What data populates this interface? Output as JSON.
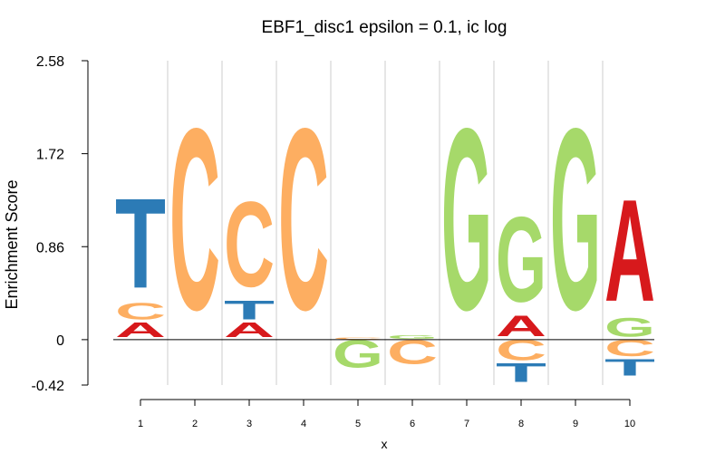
{
  "chart_data": {
    "type": "sequence-logo",
    "title": "EBF1_disc1 epsilon = 0.1, ic log",
    "xlabel": "x",
    "ylabel": "Enrichment Score",
    "ylim": [
      -0.42,
      2.58
    ],
    "yticks": [
      "2.58",
      "1.72",
      "0.86",
      "0",
      "-0.42"
    ],
    "ytick_values": [
      2.58,
      1.72,
      0.86,
      0,
      -0.42
    ],
    "positions": [
      "1",
      "2",
      "3",
      "4",
      "5",
      "6",
      "7",
      "8",
      "9",
      "10"
    ],
    "colors": {
      "A": "#d7191c",
      "C": "#fdae61",
      "G": "#a6d96a",
      "T": "#2c7bb6"
    },
    "columns": [
      {
        "position": 1,
        "positive": [
          {
            "base": "A",
            "score": 0.16
          },
          {
            "base": "C",
            "score": 0.18
          },
          {
            "base": "T",
            "score": 0.97
          }
        ],
        "negative": []
      },
      {
        "position": 2,
        "positive": [
          {
            "base": "C",
            "score": 1.96
          }
        ],
        "negative": []
      },
      {
        "position": 3,
        "positive": [
          {
            "base": "A",
            "score": 0.16
          },
          {
            "base": "T",
            "score": 0.2
          },
          {
            "base": "C",
            "score": 0.92
          }
        ],
        "negative": []
      },
      {
        "position": 4,
        "positive": [
          {
            "base": "C",
            "score": 1.96
          }
        ],
        "negative": []
      },
      {
        "position": 5,
        "positive": [
          {
            "base": "C",
            "score": 0.02
          }
        ],
        "negative": [
          {
            "base": "G",
            "score": 0.3
          }
        ]
      },
      {
        "position": 6,
        "positive": [
          {
            "base": "G",
            "score": 0.04
          }
        ],
        "negative": [
          {
            "base": "C",
            "score": 0.26
          }
        ]
      },
      {
        "position": 7,
        "positive": [
          {
            "base": "G",
            "score": 1.96
          }
        ],
        "negative": []
      },
      {
        "position": 8,
        "positive": [
          {
            "base": "A",
            "score": 0.22
          },
          {
            "base": "G",
            "score": 0.92
          }
        ],
        "negative": [
          {
            "base": "C",
            "score": 0.22
          },
          {
            "base": "T",
            "score": 0.2
          }
        ]
      },
      {
        "position": 9,
        "positive": [
          {
            "base": "G",
            "score": 1.96
          }
        ],
        "negative": []
      },
      {
        "position": 10,
        "positive": [
          {
            "base": "G",
            "score": 0.2
          },
          {
            "base": "A",
            "score": 1.1
          }
        ],
        "negative": [
          {
            "base": "C",
            "score": 0.18
          },
          {
            "base": "T",
            "score": 0.18
          }
        ]
      }
    ]
  }
}
